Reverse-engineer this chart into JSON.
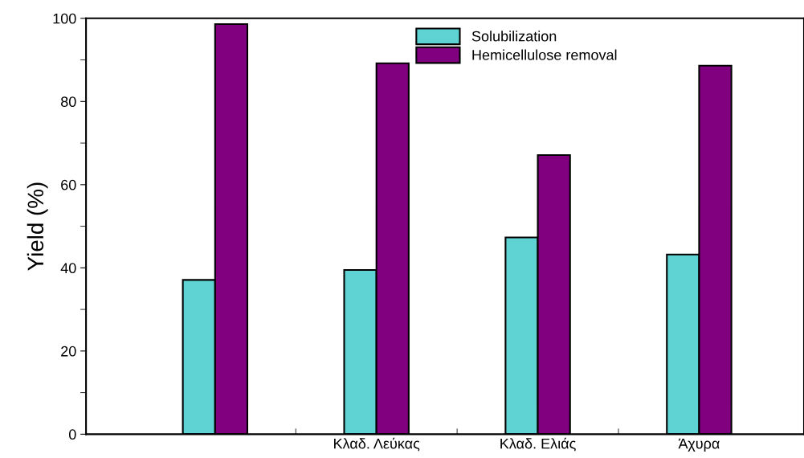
{
  "chart_data": {
    "type": "bar",
    "ylabel": "Yield (%)",
    "categories": [
      null,
      "Κλαδ. Λεύκας",
      "Κλαδ. Ελιάς",
      "Άχυρα"
    ],
    "series": [
      {
        "name": "Solubilization",
        "color": "#5fd3d3",
        "values": [
          37.1,
          39.5,
          47.3,
          43.2
        ]
      },
      {
        "name": "Hemicellulose removal",
        "color": "#800080",
        "values": [
          98.6,
          89.2,
          67.1,
          88.6
        ]
      }
    ],
    "ylim": [
      0,
      100
    ],
    "yticks": [
      0,
      20,
      40,
      60,
      80,
      100
    ],
    "grid": false,
    "legend": "top"
  }
}
